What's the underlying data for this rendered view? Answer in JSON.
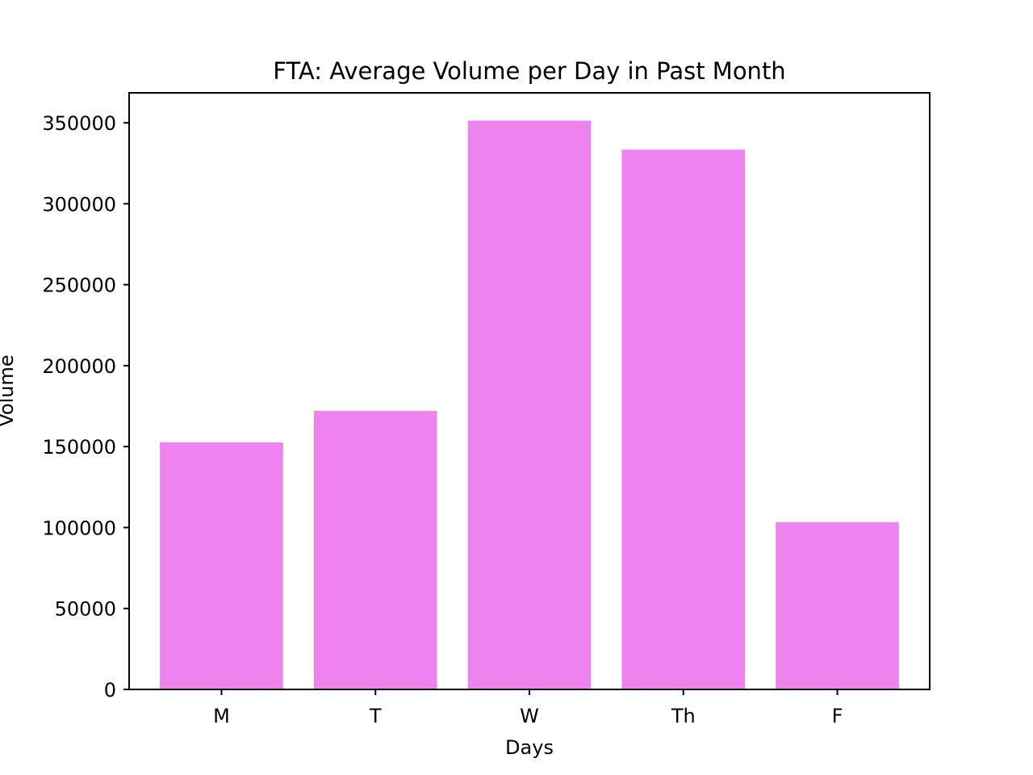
{
  "chart_data": {
    "type": "bar",
    "title": "FTA: Average Volume per Day in Past Month",
    "xlabel": "Days",
    "ylabel": "Volume",
    "categories": [
      "M",
      "T",
      "W",
      "Th",
      "F"
    ],
    "values": [
      152600,
      172000,
      351300,
      333400,
      103300
    ],
    "ylim": [
      0,
      368500
    ],
    "yticks": [
      0,
      50000,
      100000,
      150000,
      200000,
      250000,
      300000,
      350000
    ],
    "ytick_labels": [
      "0",
      "50000",
      "100000",
      "150000",
      "200000",
      "250000",
      "300000",
      "350000"
    ],
    "bar_color": "#ee82ee",
    "grid": false,
    "legend": "none"
  }
}
